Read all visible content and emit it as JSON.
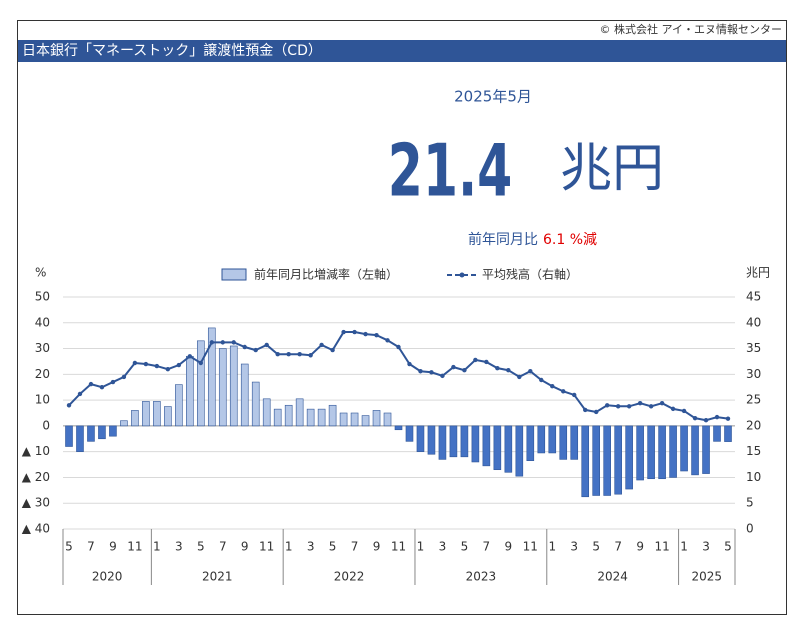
{
  "copyright": "© 株式会社 アイ・エヌ情報センター",
  "header": {
    "title": "日本銀行「マネーストック」譲渡性預金（CD）"
  },
  "headline": {
    "date": "2025年5月",
    "value": "21.4",
    "unit": "兆円",
    "change_label": "前年同月比",
    "change": "6.1 %減"
  },
  "chart_data": {
    "type": "bar_line",
    "y_unit": "%",
    "y2_unit": "兆円",
    "categories": [
      "5",
      null,
      "7",
      null,
      "9",
      null,
      "11",
      null,
      "1",
      null,
      "3",
      null,
      "5",
      null,
      "7",
      null,
      "9",
      null,
      "11",
      null,
      "1",
      null,
      "3",
      null,
      "5",
      null,
      "7",
      null,
      "9",
      null,
      "11",
      null,
      "1",
      null,
      "3",
      null,
      "5",
      null,
      "7",
      null,
      "9",
      null,
      "11",
      null,
      "1",
      null,
      "3",
      null,
      "5",
      null,
      "7",
      null,
      "9",
      null,
      "11",
      null,
      "1",
      null,
      "3",
      null,
      "5"
    ],
    "years": [
      "2020",
      "2021",
      "2022",
      "2023",
      "2024",
      "2025"
    ],
    "series": [
      {
        "name": "前年同月比増減率（左軸）",
        "type": "bar",
        "color": "#b4c7e7",
        "negative_color": "#4472c4",
        "border": "#2f5597",
        "values": [
          -8,
          -10,
          -6,
          -5,
          -4,
          2,
          6,
          9.5,
          9.5,
          7.5,
          16,
          27,
          33,
          38,
          30,
          31,
          24,
          17,
          10.5,
          6.5,
          8,
          10.5,
          6.5,
          6.5,
          8,
          5,
          5,
          4,
          6,
          5,
          -1.5,
          -6,
          -10,
          -11,
          -13,
          -12,
          -12,
          -14,
          -15.5,
          -17,
          -18,
          -19.5,
          -13.5,
          -10.5,
          -10.5,
          -13,
          -13,
          -27.5,
          -27,
          -27,
          -26.5,
          -24.5,
          -21,
          -20.5,
          -20.5,
          -20,
          -17.5,
          -19,
          -18.5,
          -6,
          -6.1
        ]
      },
      {
        "name": "平均残高（右軸）",
        "type": "line",
        "axis": "y2",
        "color": "#2f5597",
        "values": [
          24,
          26.2,
          28.1,
          27.5,
          28.5,
          29.5,
          32.2,
          32,
          31.6,
          31,
          31.8,
          33.5,
          32.2,
          36.2,
          36.2,
          36.2,
          35.3,
          34.7,
          35.7,
          33.9,
          33.9,
          33.9,
          33.7,
          35.7,
          34.7,
          38.2,
          38.2,
          37.8,
          37.6,
          36.6,
          35.3,
          32,
          30.6,
          30.4,
          29.7,
          31.4,
          30.8,
          32.8,
          32.4,
          31.2,
          30.8,
          29.5,
          30.6,
          28.9,
          27.7,
          26.7,
          26,
          23.1,
          22.7,
          24,
          23.8,
          23.8,
          24.4,
          23.8,
          24.4,
          23.3,
          22.9,
          21.5,
          21.1,
          21.7,
          21.4
        ]
      }
    ],
    "ylim": [
      -40,
      50
    ],
    "yticks": [
      50,
      40,
      30,
      20,
      10,
      0,
      {
        "value": -10,
        "label": "▲ 10"
      },
      {
        "value": -20,
        "label": "▲ 20"
      },
      {
        "value": -30,
        "label": "▲ 30"
      },
      {
        "value": -40,
        "label": "▲ 40"
      }
    ],
    "y2lim": [
      0,
      45
    ],
    "y2ticks": [
      45,
      40,
      35,
      30,
      25,
      20,
      15,
      10,
      5,
      0
    ],
    "grid": true
  }
}
